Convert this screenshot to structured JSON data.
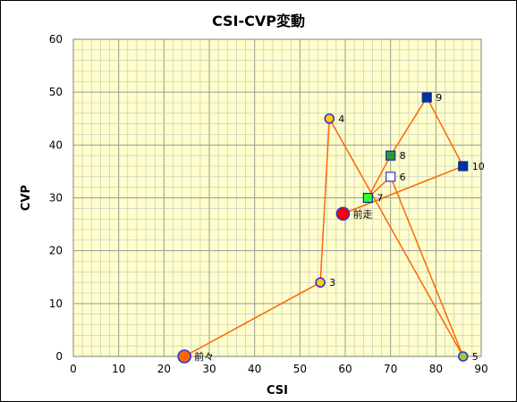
{
  "chart_data": {
    "type": "scatter",
    "title": "CSI-CVP変動",
    "xlabel": "CSI",
    "ylabel": "CVP",
    "xlim": [
      0,
      90
    ],
    "ylim": [
      0,
      60
    ],
    "xticks": [
      "0",
      "10",
      "20",
      "30",
      "40",
      "50",
      "60",
      "70",
      "80",
      "90"
    ],
    "yticks": [
      "0",
      "10",
      "20",
      "30",
      "40",
      "50",
      "60"
    ],
    "grid": true,
    "plot_background": "#ffffcc",
    "gridline_color": "#c0c0c0",
    "line_color": "#ff6600",
    "points": [
      {
        "label": "前々",
        "x": 24.5,
        "y": 0,
        "marker": "circle-large",
        "fill": "#ff6600",
        "stroke": "#3333cc"
      },
      {
        "label": "3",
        "x": 54.5,
        "y": 14,
        "marker": "circle",
        "fill": "#ffcc00",
        "stroke": "#3333cc"
      },
      {
        "label": "4",
        "x": 56.5,
        "y": 45,
        "marker": "circle",
        "fill": "#ffcc00",
        "stroke": "#3333cc"
      },
      {
        "label": "5",
        "x": 86,
        "y": 0,
        "marker": "circle",
        "fill": "#99cc33",
        "stroke": "#3333cc"
      },
      {
        "label": "6",
        "x": 70,
        "y": 34,
        "marker": "square",
        "fill": "#ffffff",
        "stroke": "#3333cc"
      },
      {
        "label": "7",
        "x": 65,
        "y": 30,
        "marker": "square",
        "fill": "#33ff33",
        "stroke": "#003399"
      },
      {
        "label": "8",
        "x": 70,
        "y": 38,
        "marker": "square",
        "fill": "#339933",
        "stroke": "#003399"
      },
      {
        "label": "9",
        "x": 78,
        "y": 49,
        "marker": "square",
        "fill": "#003399",
        "stroke": "#003399"
      },
      {
        "label": "10",
        "x": 86,
        "y": 36,
        "marker": "square",
        "fill": "#003399",
        "stroke": "#003399"
      },
      {
        "label": "前走",
        "x": 59.5,
        "y": 27,
        "marker": "circle-large",
        "fill": "#ff0000",
        "stroke": "#3333cc"
      }
    ]
  }
}
